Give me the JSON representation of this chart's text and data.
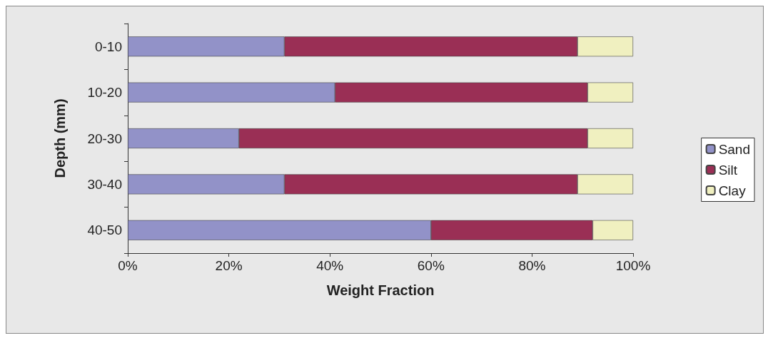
{
  "chart_data": {
    "type": "bar",
    "orientation": "horizontal",
    "stacked": true,
    "xlabel": "Weight Fraction",
    "ylabel": "Depth (mm)",
    "categories": [
      "0-10",
      "10-20",
      "20-30",
      "30-40",
      "40-50"
    ],
    "series": [
      {
        "name": "Sand",
        "color": "#9292c8",
        "values": [
          31,
          41,
          22,
          31,
          60
        ]
      },
      {
        "name": "Silt",
        "color": "#9a2f55",
        "values": [
          58,
          50,
          69,
          58,
          32
        ]
      },
      {
        "name": "Clay",
        "color": "#f0f0c0",
        "values": [
          11,
          9,
          9,
          11,
          8
        ]
      }
    ],
    "xlim": [
      0,
      100
    ],
    "xticks": [
      {
        "value": 0,
        "label": "0%"
      },
      {
        "value": 20,
        "label": "20%"
      },
      {
        "value": 40,
        "label": "40%"
      },
      {
        "value": 60,
        "label": "60%"
      },
      {
        "value": 80,
        "label": "80%"
      },
      {
        "value": 100,
        "label": "100%"
      }
    ],
    "grid": false,
    "legend": "right"
  }
}
